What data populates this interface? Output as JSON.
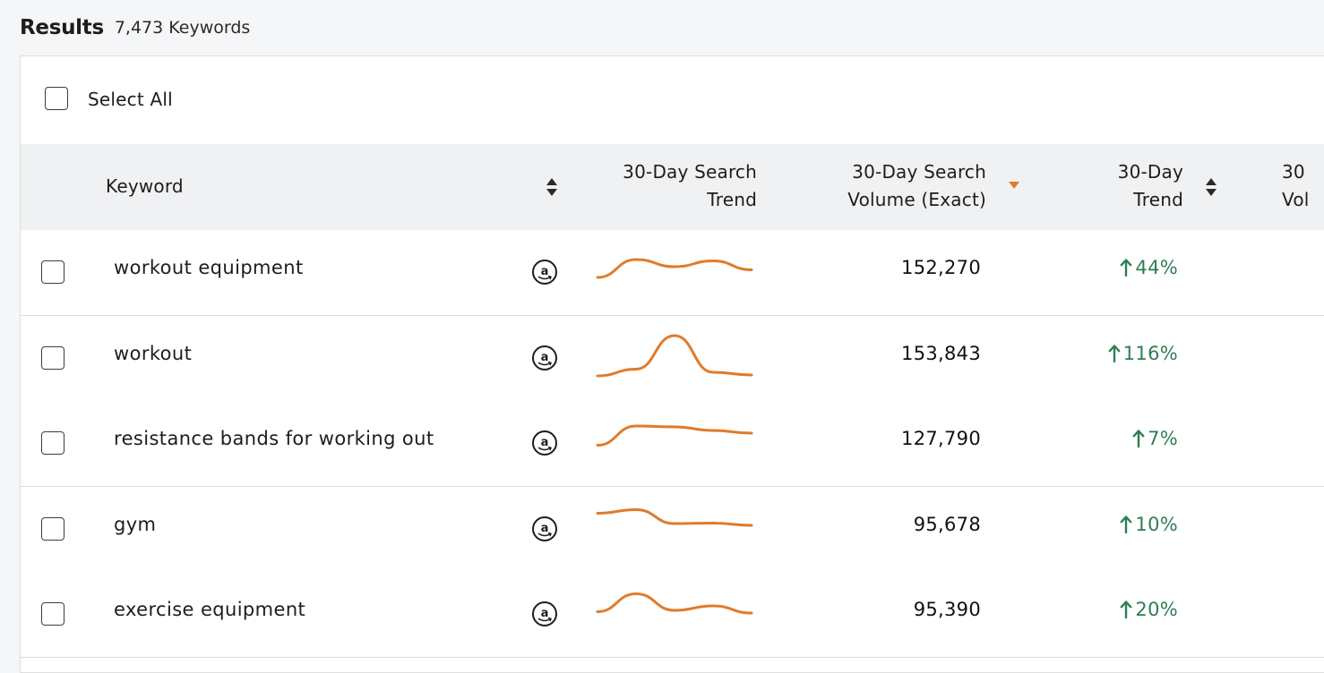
{
  "header": {
    "title": "Results",
    "count": "7,473 Keywords"
  },
  "select_all": {
    "label": "Select All"
  },
  "columns": {
    "keyword": "Keyword",
    "search_trend_line1": "30-Day Search",
    "search_trend_line2": "Trend",
    "volume_line1": "30-Day Search",
    "volume_line2": "Volume (Exact)",
    "trend_line1": "30-Day",
    "trend_line2": "Trend",
    "cut_line1": "30",
    "cut_line2": "Vol"
  },
  "colors": {
    "accent": "#e07b2a",
    "positive": "#2f7d54"
  },
  "rows": [
    {
      "keyword": "workout equipment",
      "volume": "152,270",
      "trend": "44%",
      "trend_direction": "up",
      "icon": "amazon-icon",
      "sparkline": [
        0.38,
        0.78,
        0.62,
        0.75,
        0.55
      ]
    },
    {
      "keyword": "workout",
      "volume": "153,843",
      "trend": "116%",
      "trend_direction": "up",
      "icon": "amazon-icon",
      "sparkline": [
        0.1,
        0.25,
        1.0,
        0.18,
        0.12
      ]
    },
    {
      "keyword": "resistance bands for working out",
      "volume": "127,790",
      "trend": "7%",
      "trend_direction": "up",
      "icon": "amazon-icon",
      "sparkline": [
        0.45,
        0.88,
        0.86,
        0.78,
        0.72
      ]
    },
    {
      "keyword": "gym",
      "volume": "95,678",
      "trend": "10%",
      "trend_direction": "up",
      "icon": "amazon-icon",
      "sparkline": [
        0.85,
        0.93,
        0.62,
        0.63,
        0.58
      ]
    },
    {
      "keyword": "exercise equipment",
      "volume": "95,390",
      "trend": "20%",
      "trend_direction": "up",
      "icon": "amazon-icon",
      "sparkline": [
        0.55,
        0.95,
        0.58,
        0.68,
        0.52
      ]
    }
  ]
}
